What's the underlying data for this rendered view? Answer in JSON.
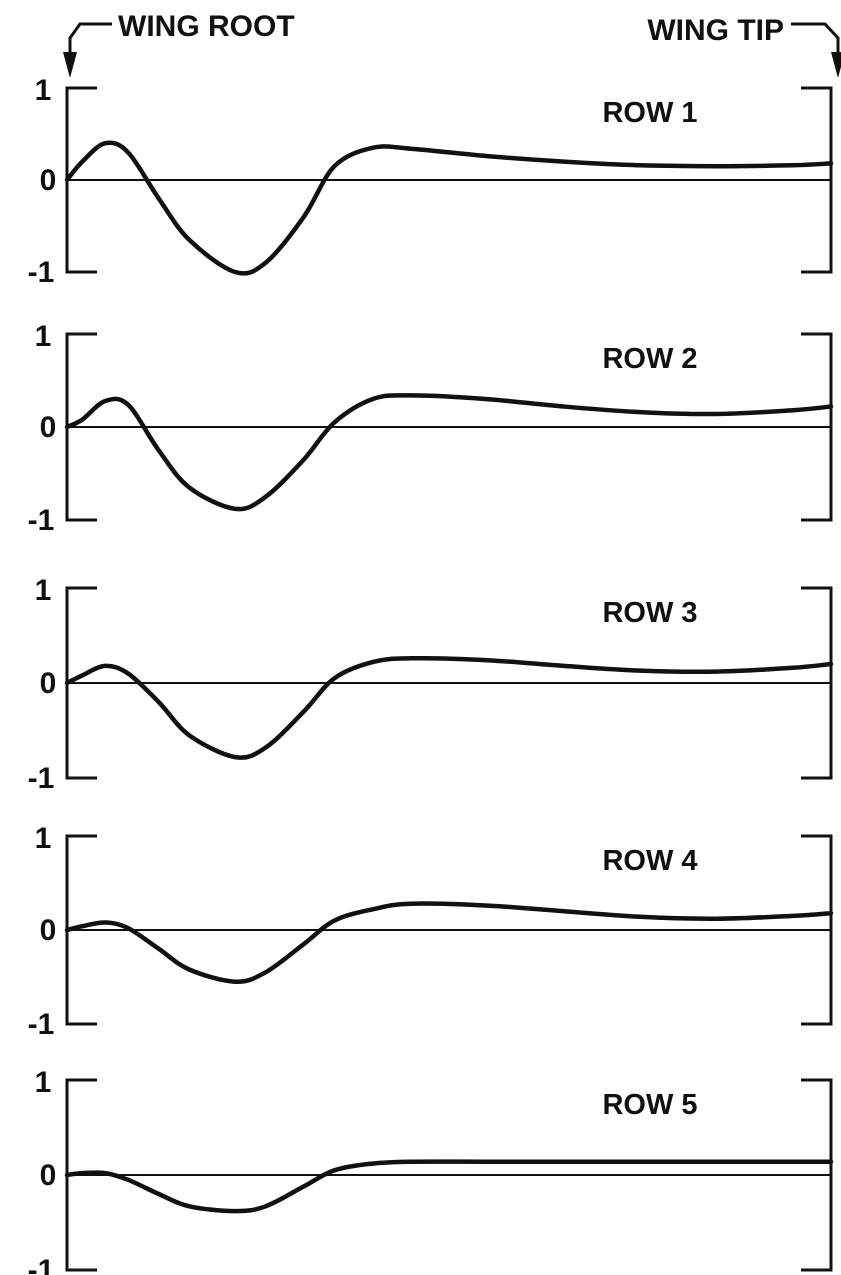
{
  "header": {
    "root_label": "WING ROOT",
    "tip_label": "WING TIP"
  },
  "chart_data": [
    {
      "type": "line",
      "title": "ROW 1",
      "xlabel": "",
      "ylabel": "",
      "ylim": [
        -1,
        1
      ],
      "yticks": [
        "1",
        "0",
        "-1"
      ],
      "grid": false,
      "x": [
        0,
        0.02,
        0.05,
        0.08,
        0.12,
        0.16,
        0.22,
        0.26,
        0.31,
        0.35,
        0.4,
        0.45,
        0.55,
        0.65,
        0.75,
        0.85,
        0.95,
        1.0
      ],
      "series": [
        {
          "values": [
            0,
            0.2,
            0.4,
            0.3,
            -0.2,
            -0.65,
            -1.0,
            -0.9,
            -0.4,
            0.15,
            0.35,
            0.34,
            0.26,
            0.2,
            0.16,
            0.15,
            0.16,
            0.18
          ]
        }
      ]
    },
    {
      "type": "line",
      "title": "ROW 2",
      "xlabel": "",
      "ylabel": "",
      "ylim": [
        -1,
        1
      ],
      "yticks": [
        "1",
        "0",
        "-1"
      ],
      "grid": false,
      "x": [
        0,
        0.02,
        0.05,
        0.08,
        0.12,
        0.16,
        0.22,
        0.26,
        0.31,
        0.35,
        0.4,
        0.45,
        0.55,
        0.65,
        0.75,
        0.85,
        0.95,
        1.0
      ],
      "series": [
        {
          "values": [
            0,
            0.08,
            0.28,
            0.24,
            -0.25,
            -0.65,
            -0.88,
            -0.75,
            -0.35,
            0.05,
            0.3,
            0.34,
            0.3,
            0.22,
            0.16,
            0.14,
            0.18,
            0.22
          ]
        }
      ]
    },
    {
      "type": "line",
      "title": "ROW 3",
      "xlabel": "",
      "ylabel": "",
      "ylim": [
        -1,
        1
      ],
      "yticks": [
        "1",
        "0",
        "-1"
      ],
      "grid": false,
      "x": [
        0,
        0.02,
        0.05,
        0.08,
        0.12,
        0.16,
        0.22,
        0.26,
        0.31,
        0.35,
        0.4,
        0.45,
        0.55,
        0.65,
        0.75,
        0.85,
        0.95,
        1.0
      ],
      "series": [
        {
          "values": [
            0,
            0.08,
            0.18,
            0.1,
            -0.2,
            -0.55,
            -0.78,
            -0.68,
            -0.3,
            0.05,
            0.22,
            0.26,
            0.24,
            0.18,
            0.13,
            0.12,
            0.16,
            0.2
          ]
        }
      ]
    },
    {
      "type": "line",
      "title": "ROW 4",
      "xlabel": "",
      "ylabel": "",
      "ylim": [
        -1,
        1
      ],
      "yticks": [
        "1",
        "0",
        "-1"
      ],
      "grid": false,
      "x": [
        0,
        0.02,
        0.05,
        0.08,
        0.12,
        0.16,
        0.22,
        0.26,
        0.31,
        0.35,
        0.4,
        0.45,
        0.55,
        0.65,
        0.75,
        0.85,
        0.95,
        1.0
      ],
      "series": [
        {
          "values": [
            0,
            0.04,
            0.08,
            0.02,
            -0.2,
            -0.42,
            -0.55,
            -0.45,
            -0.15,
            0.1,
            0.22,
            0.28,
            0.26,
            0.2,
            0.14,
            0.12,
            0.15,
            0.18
          ]
        }
      ]
    },
    {
      "type": "line",
      "title": "ROW 5",
      "xlabel": "",
      "ylabel": "",
      "ylim": [
        -1,
        1
      ],
      "yticks": [
        "1",
        "0",
        "-1"
      ],
      "grid": false,
      "x": [
        0,
        0.02,
        0.05,
        0.08,
        0.12,
        0.16,
        0.22,
        0.26,
        0.31,
        0.35,
        0.4,
        0.45,
        0.55,
        0.65,
        0.75,
        0.85,
        0.95,
        1.0
      ],
      "series": [
        {
          "values": [
            0,
            0.02,
            0.02,
            -0.05,
            -0.2,
            -0.33,
            -0.38,
            -0.33,
            -0.12,
            0.05,
            0.12,
            0.14,
            0.14,
            0.14,
            0.14,
            0.14,
            0.14,
            0.14
          ]
        }
      ]
    }
  ]
}
